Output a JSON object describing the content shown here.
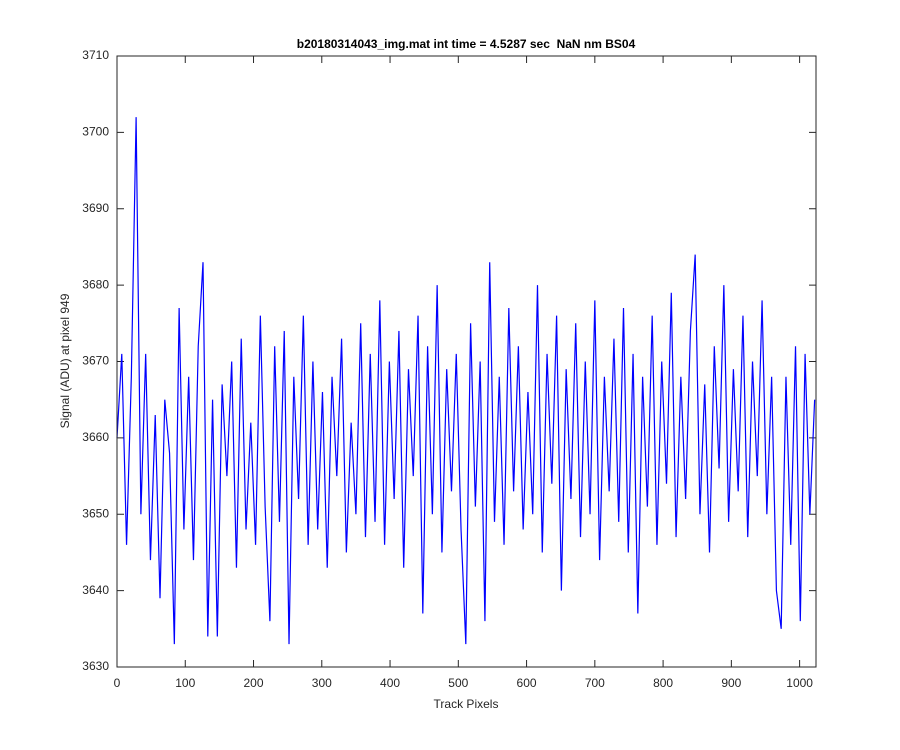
{
  "chart_data": {
    "type": "line",
    "title": "b20180314043_img.mat int time = 4.5287 sec  NaN nm BS04",
    "x_label": "Track Pixels",
    "y_label": "Signal (ADU) at pixel 949",
    "xlim": [
      0,
      1024
    ],
    "ylim": [
      3630,
      3710
    ],
    "xticks": [
      0,
      100,
      200,
      300,
      400,
      500,
      600,
      700,
      800,
      900,
      1000
    ],
    "yticks": [
      3630,
      3640,
      3650,
      3660,
      3670,
      3680,
      3690,
      3700,
      3710
    ],
    "x": [
      0,
      7,
      14,
      21,
      28,
      35,
      42,
      49,
      56,
      63,
      70,
      77,
      84,
      91,
      98,
      105,
      112,
      119,
      126,
      133,
      140,
      147,
      154,
      161,
      168,
      175,
      182,
      189,
      196,
      203,
      210,
      217,
      224,
      231,
      238,
      245,
      252,
      259,
      266,
      273,
      280,
      287,
      294,
      301,
      308,
      315,
      322,
      329,
      336,
      343,
      350,
      357,
      364,
      371,
      378,
      385,
      392,
      399,
      406,
      413,
      420,
      427,
      434,
      441,
      448,
      455,
      462,
      469,
      476,
      483,
      490,
      497,
      504,
      511,
      518,
      525,
      532,
      539,
      546,
      553,
      560,
      567,
      574,
      581,
      588,
      595,
      602,
      609,
      616,
      623,
      630,
      637,
      644,
      651,
      658,
      665,
      672,
      679,
      686,
      693,
      700,
      707,
      714,
      721,
      728,
      735,
      742,
      749,
      756,
      763,
      770,
      777,
      784,
      791,
      798,
      805,
      812,
      819,
      826,
      833,
      840,
      847,
      854,
      861,
      868,
      875,
      882,
      889,
      896,
      903,
      910,
      917,
      924,
      931,
      938,
      945,
      952,
      959,
      966,
      973,
      980,
      987,
      994,
      1001,
      1008,
      1015,
      1022
    ],
    "series": [
      {
        "name": "signal",
        "color": "#0000ff",
        "values": [
          3660,
          3671,
          3646,
          3668,
          3702,
          3650,
          3671,
          3644,
          3663,
          3639,
          3665,
          3658,
          3633,
          3677,
          3648,
          3668,
          3644,
          3672,
          3683,
          3634,
          3665,
          3634,
          3667,
          3655,
          3670,
          3643,
          3673,
          3648,
          3662,
          3646,
          3676,
          3651,
          3636,
          3672,
          3649,
          3674,
          3633,
          3668,
          3652,
          3676,
          3646,
          3670,
          3648,
          3666,
          3643,
          3668,
          3655,
          3673,
          3645,
          3662,
          3650,
          3675,
          3647,
          3671,
          3649,
          3678,
          3646,
          3670,
          3652,
          3674,
          3643,
          3669,
          3655,
          3676,
          3637,
          3672,
          3650,
          3680,
          3645,
          3669,
          3653,
          3671,
          3648,
          3633,
          3675,
          3651,
          3670,
          3636,
          3683,
          3649,
          3668,
          3646,
          3677,
          3653,
          3672,
          3648,
          3666,
          3650,
          3680,
          3645,
          3671,
          3654,
          3676,
          3640,
          3669,
          3652,
          3675,
          3647,
          3670,
          3650,
          3678,
          3644,
          3668,
          3653,
          3673,
          3649,
          3677,
          3645,
          3671,
          3637,
          3668,
          3651,
          3676,
          3646,
          3670,
          3654,
          3679,
          3647,
          3668,
          3652,
          3674,
          3684,
          3650,
          3667,
          3645,
          3672,
          3656,
          3680,
          3649,
          3669,
          3653,
          3676,
          3647,
          3670,
          3655,
          3678,
          3650,
          3668,
          3640,
          3635,
          3668,
          3646,
          3672,
          3636,
          3671,
          3650,
          3665
        ]
      }
    ]
  }
}
